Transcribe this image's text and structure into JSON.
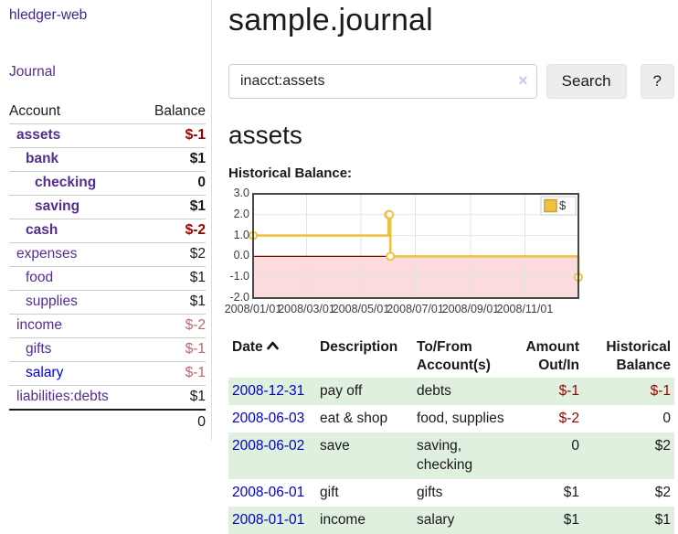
{
  "colors": {
    "purple": "#552d90",
    "brand_purple": "#432393",
    "blue": "#0000cc",
    "newblue": "#0000e6",
    "negstrong": "#990000",
    "negsoft": "#b8686e",
    "stripe": "#dff0df",
    "gold": "#edc240",
    "goldedge": "#c9a02f",
    "pink": "#fbdbdb",
    "zero": "#7c0a02",
    "grid": "#e4e4e4",
    "axis": "#474747"
  },
  "app": {
    "brand": "hledger-web",
    "nav_journal": "Journal"
  },
  "sidebar": {
    "col_account": "Account",
    "col_balance": "Balance",
    "accounts": [
      {
        "name": "assets",
        "depth": 0,
        "balance": "$-1",
        "bold": true,
        "neg": "strong",
        "new_link": false
      },
      {
        "name": "bank",
        "depth": 1,
        "balance": "$1",
        "bold": true,
        "neg": "none",
        "new_link": false
      },
      {
        "name": "checking",
        "depth": 2,
        "balance": "0",
        "bold": true,
        "neg": "none",
        "new_link": false
      },
      {
        "name": "saving",
        "depth": 2,
        "balance": "$1",
        "bold": true,
        "neg": "none",
        "new_link": false
      },
      {
        "name": "cash",
        "depth": 1,
        "balance": "$-2",
        "bold": true,
        "neg": "strong",
        "new_link": false
      },
      {
        "name": "expenses",
        "depth": 0,
        "balance": "$2",
        "bold": false,
        "neg": "none",
        "new_link": false
      },
      {
        "name": "food",
        "depth": 1,
        "balance": "$1",
        "bold": false,
        "neg": "none",
        "new_link": false
      },
      {
        "name": "supplies",
        "depth": 1,
        "balance": "$1",
        "bold": false,
        "neg": "none",
        "new_link": false
      },
      {
        "name": "income",
        "depth": 0,
        "balance": "$-2",
        "bold": false,
        "neg": "soft",
        "new_link": false
      },
      {
        "name": "gifts",
        "depth": 1,
        "balance": "$-1",
        "bold": false,
        "neg": "soft",
        "new_link": false
      },
      {
        "name": "salary",
        "depth": 1,
        "balance": "$-1",
        "bold": false,
        "neg": "soft",
        "new_link": true
      },
      {
        "name": "liabilities:debts",
        "depth": 0,
        "balance": "$1",
        "bold": false,
        "neg": "none",
        "new_link": false
      }
    ],
    "total": "0"
  },
  "header": {
    "title": "sample.journal"
  },
  "search": {
    "value": "inacct:assets",
    "clear_icon": "×",
    "button_label": "Search",
    "help_label": "?"
  },
  "account_page": {
    "heading": "assets",
    "chart_label": "Historical Balance:"
  },
  "chart_data": {
    "type": "line",
    "step": true,
    "title": "Historical Balance:",
    "legend_label": "$",
    "legend_position": "top-right",
    "grid": true,
    "x_range": [
      "2008-01-01",
      "2008-12-31"
    ],
    "ylim": [
      -2,
      3
    ],
    "yticks": [
      {
        "value": 3,
        "label": "3.0"
      },
      {
        "value": 2,
        "label": "2.0"
      },
      {
        "value": 1,
        "label": "1.0"
      },
      {
        "value": 0,
        "label": "0.0"
      },
      {
        "value": -1,
        "label": "-1.0"
      },
      {
        "value": -2,
        "label": "-2.0"
      }
    ],
    "xticks": [
      {
        "date": "2008-01-01",
        "label": "2008/01/01"
      },
      {
        "date": "2008-03-01",
        "label": "2008/03/01"
      },
      {
        "date": "2008-05-01",
        "label": "2008/05/01"
      },
      {
        "date": "2008-07-01",
        "label": "2008/07/01"
      },
      {
        "date": "2008-09-01",
        "label": "2008/09/01"
      },
      {
        "date": "2008-11-01",
        "label": "2008/11/01"
      }
    ],
    "series": [
      {
        "name": "$",
        "points": [
          [
            "2008-01-01",
            1
          ],
          [
            "2008-06-01",
            2
          ],
          [
            "2008-06-02",
            2
          ],
          [
            "2008-06-03",
            0
          ],
          [
            "2008-12-31",
            -1
          ]
        ]
      }
    ]
  },
  "register": {
    "col_date": "Date",
    "col_description": "Description",
    "col_accounts": "To/From Account(s)",
    "col_amount": "Amount Out/In",
    "col_balance": "Historical Balance",
    "sort_icon": "chevron-up",
    "rows": [
      {
        "date": "2008-12-31",
        "description": "pay off",
        "accounts": "debts",
        "amount": "$-1",
        "amount_neg": true,
        "balance": "$-1",
        "balance_neg": true
      },
      {
        "date": "2008-06-03",
        "description": "eat & shop",
        "accounts": "food, supplies",
        "amount": "$-2",
        "amount_neg": true,
        "balance": "0",
        "balance_neg": false
      },
      {
        "date": "2008-06-02",
        "description": "save",
        "accounts": "saving, checking",
        "amount": "0",
        "amount_neg": false,
        "balance": "$2",
        "balance_neg": false
      },
      {
        "date": "2008-06-01",
        "description": "gift",
        "accounts": "gifts",
        "amount": "$1",
        "amount_neg": false,
        "balance": "$2",
        "balance_neg": false
      },
      {
        "date": "2008-01-01",
        "description": "income",
        "accounts": "salary",
        "amount": "$1",
        "amount_neg": false,
        "balance": "$1",
        "balance_neg": false
      }
    ]
  }
}
